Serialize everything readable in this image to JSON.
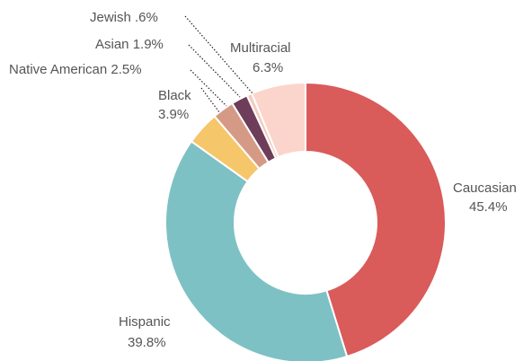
{
  "chart_data": {
    "type": "pie",
    "variant": "donut",
    "title": "",
    "legend": "none (direct labels)",
    "slices": [
      {
        "label": "Caucasian",
        "value": 45.4,
        "value_label": "45.4%",
        "color": "#d95b5a"
      },
      {
        "label": "Hispanic",
        "value": 39.8,
        "value_label": "39.8%",
        "color": "#7ec1c4"
      },
      {
        "label": "Black",
        "value": 3.9,
        "value_label": "3.9%",
        "color": "#f6c66a"
      },
      {
        "label": "Native American",
        "value": 2.5,
        "value_label": "2.5%",
        "color": "#d59a85"
      },
      {
        "label": "Asian",
        "value": 1.9,
        "value_label": "1.9%",
        "color": "#6d3d5a"
      },
      {
        "label": "Jewish",
        "value": 0.6,
        "value_label": ".6%",
        "color": "#f4ccbf"
      },
      {
        "label": "Multiracial",
        "value": 6.3,
        "value_label": "6.3%",
        "color": "#fbd5cb"
      }
    ]
  }
}
